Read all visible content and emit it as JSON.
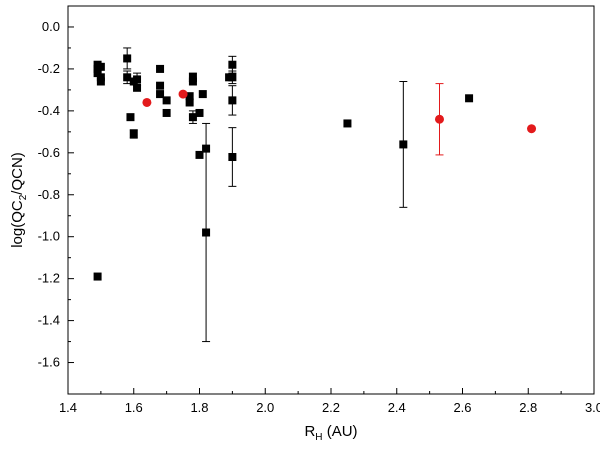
{
  "chart_data": {
    "type": "scatter",
    "title": "",
    "xlabel": {
      "main": "R",
      "sub": "H",
      "rest": " (AU)"
    },
    "ylabel": {
      "part1": "log(QC",
      "sub": "2",
      "part2": "/QCN)"
    },
    "xlim": [
      1.4,
      3.0
    ],
    "ylim": [
      -1.75,
      0.1
    ],
    "xticks": [
      "1.4",
      "1.6",
      "1.8",
      "2.0",
      "2.2",
      "2.4",
      "2.6",
      "2.8",
      "3.0"
    ],
    "yticks": [
      "0.0",
      "-0.2",
      "-0.4",
      "-0.6",
      "-0.8",
      "-1.0",
      "-1.2",
      "-1.4",
      "-1.6"
    ],
    "grid": false,
    "legend": "none",
    "series": [
      {
        "color": "#000000",
        "marker": "square",
        "points": [
          {
            "x": 1.49,
            "y": -0.18
          },
          {
            "x": 1.49,
            "y": -0.2
          },
          {
            "x": 1.49,
            "y": -0.22
          },
          {
            "x": 1.5,
            "y": -0.19
          },
          {
            "x": 1.5,
            "y": -0.24
          },
          {
            "x": 1.5,
            "y": -0.26
          },
          {
            "x": 1.49,
            "y": -1.19
          },
          {
            "x": 1.58,
            "y": -0.15,
            "err": 0.05
          },
          {
            "x": 1.58,
            "y": -0.24,
            "err": 0.03
          },
          {
            "x": 1.59,
            "y": -0.43
          },
          {
            "x": 1.6,
            "y": -0.26
          },
          {
            "x": 1.61,
            "y": -0.25,
            "err": 0.03
          },
          {
            "x": 1.61,
            "y": -0.29
          },
          {
            "x": 1.6,
            "y": -0.51,
            "err": 0.02
          },
          {
            "x": 1.68,
            "y": -0.2
          },
          {
            "x": 1.68,
            "y": -0.28
          },
          {
            "x": 1.68,
            "y": -0.32
          },
          {
            "x": 1.7,
            "y": -0.35
          },
          {
            "x": 1.7,
            "y": -0.41
          },
          {
            "x": 1.77,
            "y": -0.33
          },
          {
            "x": 1.77,
            "y": -0.36
          },
          {
            "x": 1.78,
            "y": -0.24,
            "err": 0.02
          },
          {
            "x": 1.78,
            "y": -0.26
          },
          {
            "x": 1.78,
            "y": -0.43,
            "err": 0.03
          },
          {
            "x": 1.8,
            "y": -0.41
          },
          {
            "x": 1.81,
            "y": -0.32
          },
          {
            "x": 1.8,
            "y": -0.61
          },
          {
            "x": 1.82,
            "y": -0.58
          },
          {
            "x": 1.82,
            "y": -0.98,
            "err": 0.52
          },
          {
            "x": 1.89,
            "y": -0.24
          },
          {
            "x": 1.9,
            "y": -0.24,
            "err": 0.03
          },
          {
            "x": 1.9,
            "y": -0.18,
            "err": 0.04
          },
          {
            "x": 1.9,
            "y": -0.35,
            "err": 0.07
          },
          {
            "x": 1.9,
            "y": -0.62,
            "err": 0.14
          },
          {
            "x": 2.25,
            "y": -0.46
          },
          {
            "x": 2.42,
            "y": -0.56,
            "err": 0.3
          },
          {
            "x": 2.62,
            "y": -0.34
          }
        ]
      },
      {
        "color": "#e31a1c",
        "marker": "circle",
        "points": [
          {
            "x": 1.64,
            "y": -0.36
          },
          {
            "x": 1.75,
            "y": -0.32
          },
          {
            "x": 2.53,
            "y": -0.44,
            "err": 0.17
          },
          {
            "x": 2.81,
            "y": -0.485
          }
        ]
      }
    ]
  }
}
